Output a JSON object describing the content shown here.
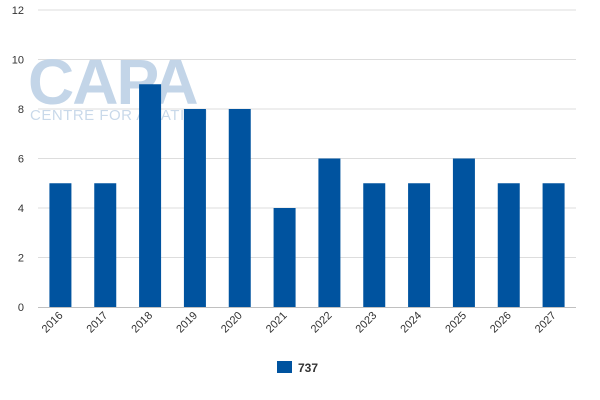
{
  "watermark": {
    "brand": "CAPA",
    "tagline": "CENTRE FOR AVIATION"
  },
  "colors": {
    "series": "#00539f",
    "grid": "#dddddd",
    "axis": "#c0c0c0"
  },
  "chart_data": {
    "type": "bar",
    "categories": [
      "2016",
      "2017",
      "2018",
      "2019",
      "2020",
      "2021",
      "2022",
      "2023",
      "2024",
      "2025",
      "2026",
      "2027"
    ],
    "series": [
      {
        "name": "737",
        "values": [
          5,
          5,
          9,
          8,
          8,
          4,
          6,
          5,
          5,
          6,
          5,
          5
        ]
      }
    ],
    "yticks": [
      0,
      2,
      4,
      6,
      8,
      10,
      12
    ],
    "ylim": [
      0,
      12
    ],
    "title": "",
    "xlabel": "",
    "ylabel": "",
    "grid": true,
    "legend_position": "bottom-center"
  }
}
